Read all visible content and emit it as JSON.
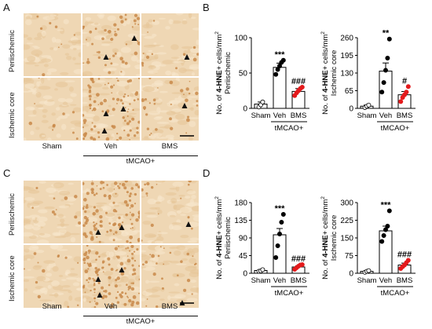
{
  "panels": {
    "A": {
      "label": "A",
      "row_labels": [
        "Periischemic",
        "Ischemic core"
      ],
      "col_labels": [
        "Sham",
        "Veh",
        "BMS"
      ],
      "group_label": "tMCAO+",
      "stain": "4-HNE"
    },
    "C": {
      "label": "C",
      "row_labels": [
        "Periischemic",
        "Ischemic core"
      ],
      "col_labels": [
        "Sham",
        "Veh",
        "BMS"
      ],
      "group_label": "tMCAO+",
      "stain": "4-HNE"
    }
  },
  "colors": {
    "tissue": "#efd7b4",
    "cell": "#c98a4a",
    "arrow": "#111111",
    "bms_point": "#e41a1c",
    "bar_edge": "#000000"
  },
  "chart_data": [
    {
      "panel": "B",
      "type": "bar",
      "ylabel_prefix": "No. of ",
      "ylabel_bold": "4-HNE",
      "ylabel_suffix": "+ cells/mm",
      "ylabel_sup": "2",
      "ylabel_region": "Periischemic",
      "categories": [
        "Sham",
        "Veh",
        "BMS"
      ],
      "group_label": "tMCAO+",
      "ylim": [
        0,
        100
      ],
      "yticks": [
        "0",
        "50",
        "100"
      ],
      "means": [
        6,
        58,
        24
      ],
      "sem": [
        3,
        6,
        4
      ],
      "points": [
        [
          2,
          5,
          9
        ],
        [
          48,
          55,
          60,
          65,
          68
        ],
        [
          18,
          22,
          25,
          28,
          30
        ]
      ],
      "sig": [
        "",
        "***",
        "###"
      ]
    },
    {
      "panel": "B",
      "type": "bar",
      "ylabel_prefix": "No. of ",
      "ylabel_bold": "4-HNE",
      "ylabel_suffix": "+ cells/mm",
      "ylabel_sup": "2",
      "ylabel_region": "Ischemic core",
      "categories": [
        "Sham",
        "Veh",
        "BMS"
      ],
      "group_label": "tMCAO+",
      "ylim": [
        0,
        260
      ],
      "yticks": [
        "0",
        "65",
        "130",
        "195",
        "260"
      ],
      "means": [
        8,
        137,
        50
      ],
      "sem": [
        4,
        30,
        12
      ],
      "points": [
        [
          3,
          8,
          12
        ],
        [
          60,
          95,
          140,
          185,
          255
        ],
        [
          25,
          40,
          50,
          60,
          80
        ]
      ],
      "sig": [
        "",
        "**",
        "#"
      ]
    },
    {
      "panel": "D",
      "type": "bar",
      "ylabel_prefix": "No. of ",
      "ylabel_bold": "4-HNE",
      "ylabel_suffix": "+ cells/mm",
      "ylabel_sup": "2",
      "ylabel_region": "Periischemic",
      "categories": [
        "Sham",
        "Veh",
        "BMS"
      ],
      "group_label": "tMCAO+",
      "ylim": [
        0,
        180
      ],
      "yticks": [
        "0",
        "45",
        "90",
        "135",
        "180"
      ],
      "means": [
        7,
        98,
        16
      ],
      "sem": [
        2,
        16,
        3
      ],
      "points": [
        [
          5,
          6,
          9
        ],
        [
          40,
          70,
          100,
          130,
          150
        ],
        [
          10,
          14,
          18,
          21,
          22
        ]
      ],
      "sig": [
        "",
        "***",
        "###"
      ]
    },
    {
      "panel": "D",
      "type": "bar",
      "ylabel_prefix": "No. of ",
      "ylabel_bold": "4-HNE",
      "ylabel_suffix": "+ cells/mm",
      "ylabel_sup": "2",
      "ylabel_region": "Ischemic core",
      "categories": [
        "Sham",
        "Veh",
        "BMS"
      ],
      "group_label": "tMCAO+",
      "ylim": [
        0,
        300
      ],
      "yticks": [
        "0",
        "75",
        "150",
        "225",
        "300"
      ],
      "means": [
        8,
        180,
        35
      ],
      "sem": [
        3,
        20,
        8
      ],
      "points": [
        [
          4,
          8,
          11
        ],
        [
          135,
          160,
          185,
          200,
          265
        ],
        [
          20,
          28,
          35,
          45,
          55
        ]
      ],
      "sig": [
        "",
        "***",
        "###"
      ]
    }
  ]
}
